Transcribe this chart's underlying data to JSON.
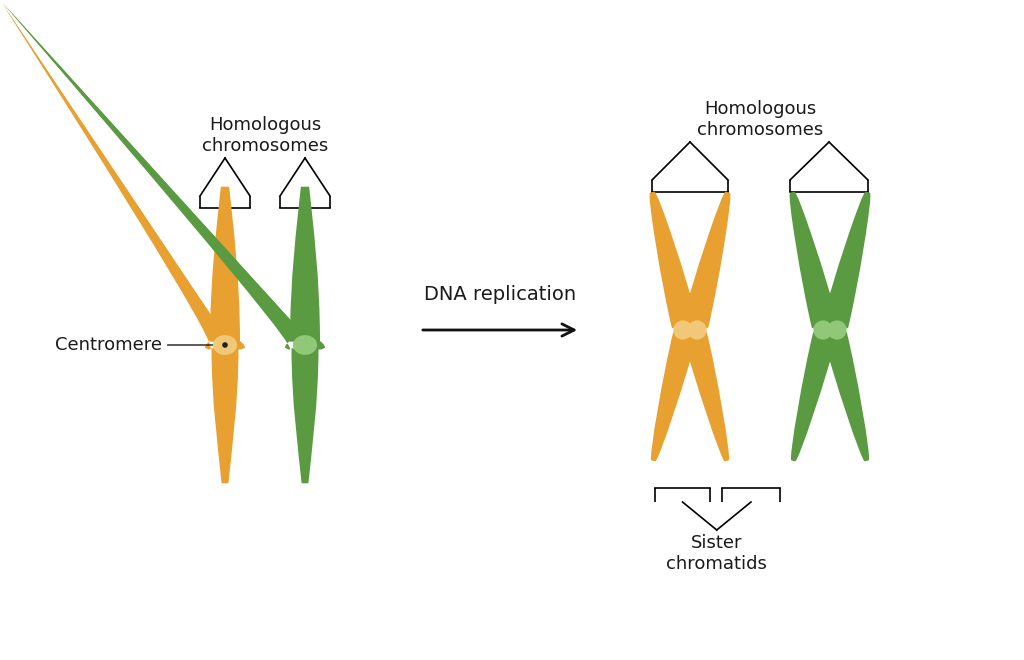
{
  "bg_color": "#ffffff",
  "orange_color": "#E8A030",
  "orange_light": "#F0BC60",
  "orange_centromere": "#F0C878",
  "green_color": "#5A9A40",
  "green_light": "#70B050",
  "green_centromere": "#90C878",
  "text_color": "#1a1a1a",
  "arrow_color": "#111111",
  "label_homologous_left": "Homologous\nchromosomes",
  "label_homologous_right": "Homologous\nchromosomes",
  "label_centromere": "Centromere",
  "label_arrow": "DNA replication",
  "label_sister": "Sister\nchromatids",
  "font_size_labels": 13,
  "font_size_arrow": 14
}
